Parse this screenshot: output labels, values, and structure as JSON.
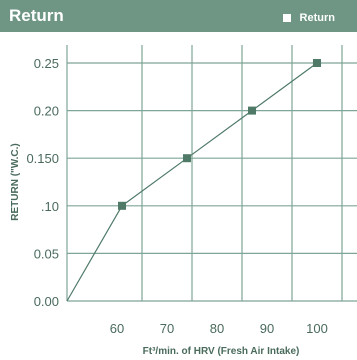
{
  "header": {
    "title": "Return"
  },
  "legend": {
    "label": "Return"
  },
  "colors": {
    "header_bg": "#6f9684",
    "grid": "#7fa596",
    "line": "#4f7a68",
    "marker": "#4f7a68",
    "text": "#4a6b5c"
  },
  "chart_data": {
    "type": "line",
    "title": "Return",
    "xlabel": "Ft³/min. of HRV (Fresh Air Intake)",
    "ylabel": "RETURN (\"W.C.)",
    "xlim": [
      50,
      108
    ],
    "ylim": [
      0,
      0.25
    ],
    "x_ticks": [
      60,
      70,
      80,
      90,
      100
    ],
    "x_tick_labels": [
      "60",
      "70",
      "80",
      "90",
      "100"
    ],
    "y_ticks": [
      0,
      0.05,
      0.1,
      0.15,
      0.2,
      0.25
    ],
    "y_tick_labels": [
      "0.00",
      "0.05",
      ".10",
      "0.150",
      "0.20",
      "0.25"
    ],
    "grid": true,
    "legend_position": "top-right",
    "series": [
      {
        "name": "Return",
        "x": [
          50,
          61,
          74,
          87,
          100
        ],
        "y": [
          0,
          0.1,
          0.15,
          0.2,
          0.25
        ],
        "markers": [
          false,
          true,
          true,
          true,
          true
        ]
      }
    ]
  }
}
